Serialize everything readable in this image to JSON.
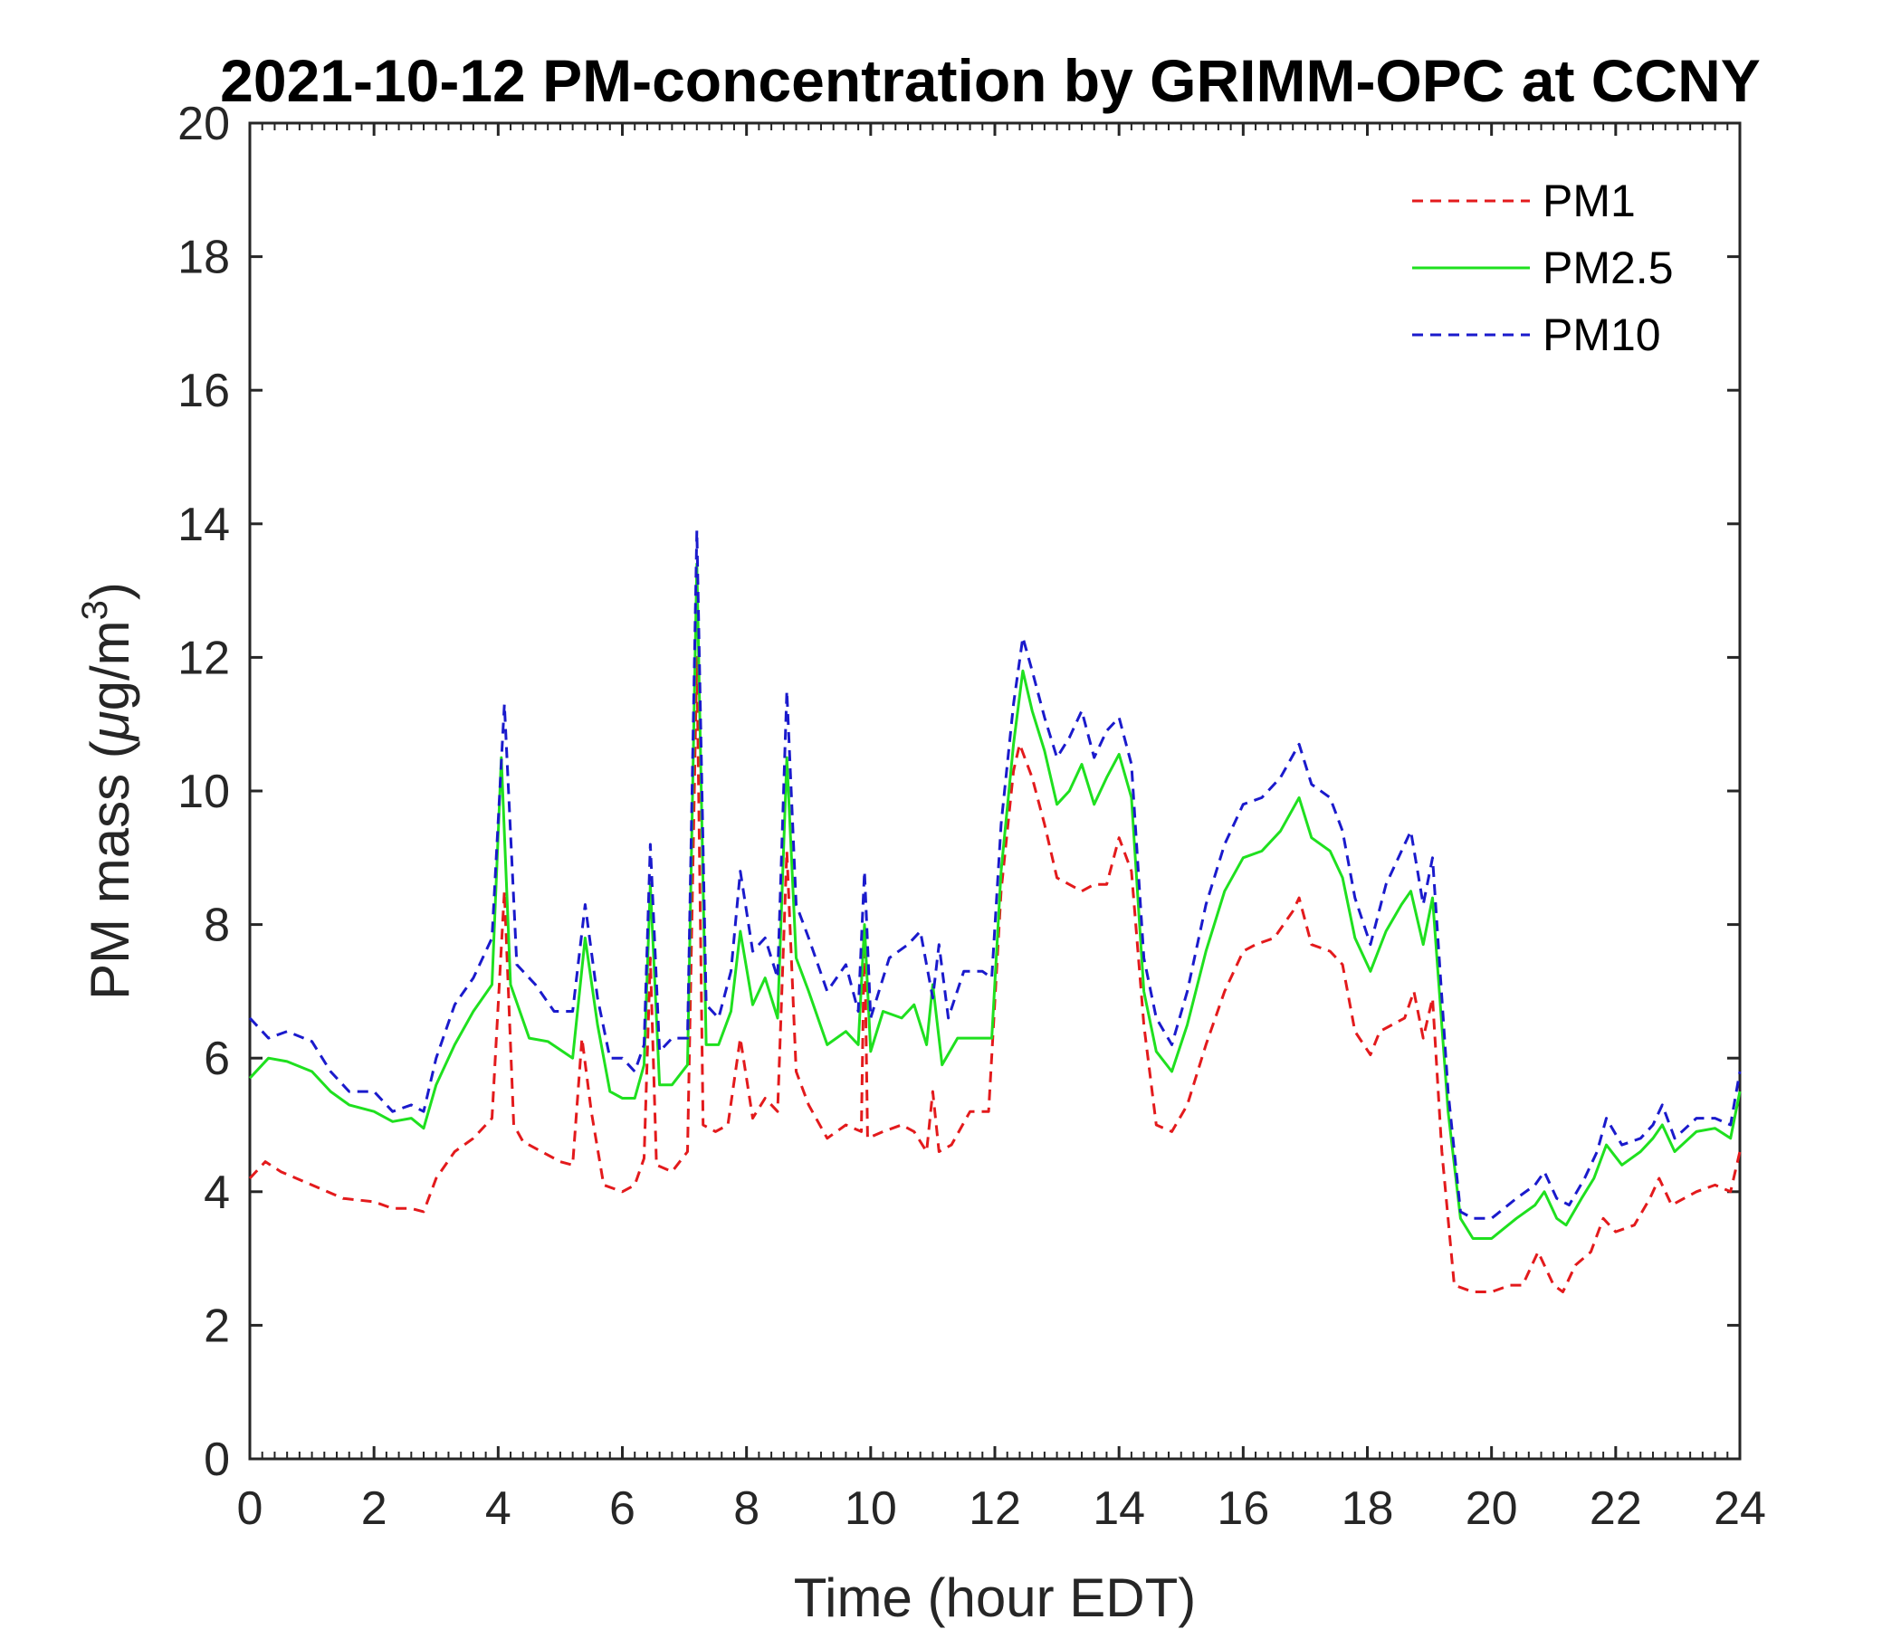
{
  "chart_data": {
    "type": "line",
    "title": "2021-10-12 PM-concentration by GRIMM-OPC at CCNY",
    "xlabel": "Time (hour EDT)",
    "ylabel_main": "PM mass (",
    "ylabel_mu": "μ",
    "ylabel_unit": "g/m",
    "ylabel_sup": "3",
    "ylabel_close": ")",
    "xlim": [
      0,
      24
    ],
    "ylim": [
      0,
      20
    ],
    "xticks": [
      "0",
      "2",
      "4",
      "6",
      "8",
      "10",
      "12",
      "14",
      "16",
      "18",
      "20",
      "22",
      "24"
    ],
    "yticks": [
      "0",
      "2",
      "4",
      "6",
      "8",
      "10",
      "12",
      "14",
      "16",
      "18",
      "20"
    ],
    "legend_position": "top-right",
    "series": [
      {
        "name": "PM1",
        "color": "#e31a1c",
        "dash": "dashed",
        "points": [
          [
            0,
            4.2
          ],
          [
            0.25,
            4.45
          ],
          [
            0.5,
            4.3
          ],
          [
            1,
            4.1
          ],
          [
            1.5,
            3.9
          ],
          [
            2,
            3.85
          ],
          [
            2.3,
            3.75
          ],
          [
            2.6,
            3.75
          ],
          [
            2.8,
            3.7
          ],
          [
            3,
            4.2
          ],
          [
            3.3,
            4.6
          ],
          [
            3.6,
            4.8
          ],
          [
            3.9,
            5.1
          ],
          [
            4.1,
            8.5
          ],
          [
            4.25,
            5
          ],
          [
            4.4,
            4.75
          ],
          [
            4.7,
            4.6
          ],
          [
            5,
            4.45
          ],
          [
            5.2,
            4.4
          ],
          [
            5.35,
            6.3
          ],
          [
            5.5,
            5.2
          ],
          [
            5.7,
            4.1
          ],
          [
            6,
            4
          ],
          [
            6.2,
            4.1
          ],
          [
            6.35,
            4.5
          ],
          [
            6.45,
            7.5
          ],
          [
            6.55,
            4.4
          ],
          [
            6.8,
            4.3
          ],
          [
            7.05,
            4.6
          ],
          [
            7.2,
            12.0
          ],
          [
            7.3,
            5.0
          ],
          [
            7.5,
            4.9
          ],
          [
            7.7,
            5.0
          ],
          [
            7.9,
            6.3
          ],
          [
            8.1,
            5.1
          ],
          [
            8.3,
            5.4
          ],
          [
            8.5,
            5.2
          ],
          [
            8.65,
            9.1
          ],
          [
            8.8,
            5.8
          ],
          [
            9,
            5.3
          ],
          [
            9.3,
            4.8
          ],
          [
            9.6,
            5
          ],
          [
            9.85,
            4.9
          ],
          [
            9.9,
            8.0
          ],
          [
            9.95,
            4.8
          ],
          [
            10.2,
            4.9
          ],
          [
            10.5,
            5
          ],
          [
            10.7,
            4.9
          ],
          [
            10.9,
            4.6
          ],
          [
            11,
            5.5
          ],
          [
            11.1,
            4.6
          ],
          [
            11.3,
            4.7
          ],
          [
            11.6,
            5.2
          ],
          [
            11.9,
            5.2
          ],
          [
            12.1,
            8.5
          ],
          [
            12.3,
            10.3
          ],
          [
            12.4,
            10.7
          ],
          [
            12.6,
            10.2
          ],
          [
            12.8,
            9.5
          ],
          [
            13,
            8.7
          ],
          [
            13.2,
            8.6
          ],
          [
            13.4,
            8.5
          ],
          [
            13.6,
            8.6
          ],
          [
            13.8,
            8.6
          ],
          [
            14,
            9.3
          ],
          [
            14.2,
            8.8
          ],
          [
            14.4,
            6.5
          ],
          [
            14.6,
            5.0
          ],
          [
            14.85,
            4.9
          ],
          [
            15.1,
            5.3
          ],
          [
            15.4,
            6.2
          ],
          [
            15.7,
            7.0
          ],
          [
            16,
            7.6
          ],
          [
            16.2,
            7.7
          ],
          [
            16.5,
            7.8
          ],
          [
            16.8,
            8.2
          ],
          [
            16.9,
            8.4
          ],
          [
            17.1,
            7.7
          ],
          [
            17.4,
            7.6
          ],
          [
            17.6,
            7.4
          ],
          [
            17.8,
            6.4
          ],
          [
            18.05,
            6.05
          ],
          [
            18.2,
            6.4
          ],
          [
            18.6,
            6.6
          ],
          [
            18.75,
            7.0
          ],
          [
            18.9,
            6.3
          ],
          [
            19.05,
            6.9
          ],
          [
            19.2,
            4.6
          ],
          [
            19.4,
            2.6
          ],
          [
            19.7,
            2.5
          ],
          [
            20,
            2.5
          ],
          [
            20.3,
            2.6
          ],
          [
            20.5,
            2.6
          ],
          [
            20.75,
            3.1
          ],
          [
            21,
            2.6
          ],
          [
            21.15,
            2.5
          ],
          [
            21.35,
            2.9
          ],
          [
            21.6,
            3.1
          ],
          [
            21.8,
            3.6
          ],
          [
            22,
            3.4
          ],
          [
            22.3,
            3.5
          ],
          [
            22.55,
            3.9
          ],
          [
            22.7,
            4.2
          ],
          [
            22.9,
            3.8
          ],
          [
            23.3,
            4.0
          ],
          [
            23.6,
            4.1
          ],
          [
            23.85,
            4.0
          ],
          [
            24,
            4.6
          ]
        ]
      },
      {
        "name": "PM2.5",
        "color": "#1fe01f",
        "dash": "solid",
        "points": [
          [
            0,
            5.7
          ],
          [
            0.3,
            6.0
          ],
          [
            0.6,
            5.95
          ],
          [
            1,
            5.8
          ],
          [
            1.3,
            5.5
          ],
          [
            1.6,
            5.3
          ],
          [
            2,
            5.2
          ],
          [
            2.3,
            5.05
          ],
          [
            2.6,
            5.1
          ],
          [
            2.8,
            4.95
          ],
          [
            3,
            5.6
          ],
          [
            3.3,
            6.2
          ],
          [
            3.6,
            6.7
          ],
          [
            3.9,
            7.1
          ],
          [
            4.05,
            10.5
          ],
          [
            4.2,
            7.1
          ],
          [
            4.5,
            6.3
          ],
          [
            4.8,
            6.25
          ],
          [
            5.2,
            6.0
          ],
          [
            5.4,
            7.8
          ],
          [
            5.6,
            6.5
          ],
          [
            5.8,
            5.5
          ],
          [
            6,
            5.4
          ],
          [
            6.2,
            5.4
          ],
          [
            6.35,
            5.9
          ],
          [
            6.45,
            8.6
          ],
          [
            6.6,
            5.6
          ],
          [
            6.8,
            5.6
          ],
          [
            7.05,
            5.9
          ],
          [
            7.2,
            13.4
          ],
          [
            7.35,
            6.2
          ],
          [
            7.55,
            6.2
          ],
          [
            7.75,
            6.7
          ],
          [
            7.9,
            7.9
          ],
          [
            8.1,
            6.8
          ],
          [
            8.3,
            7.2
          ],
          [
            8.5,
            6.6
          ],
          [
            8.65,
            10.5
          ],
          [
            8.8,
            7.5
          ],
          [
            9,
            7.0
          ],
          [
            9.3,
            6.2
          ],
          [
            9.6,
            6.4
          ],
          [
            9.8,
            6.2
          ],
          [
            9.9,
            8.0
          ],
          [
            10,
            6.1
          ],
          [
            10.2,
            6.7
          ],
          [
            10.5,
            6.6
          ],
          [
            10.7,
            6.8
          ],
          [
            10.9,
            6.2
          ],
          [
            11,
            7.1
          ],
          [
            11.15,
            5.9
          ],
          [
            11.4,
            6.3
          ],
          [
            11.7,
            6.3
          ],
          [
            11.95,
            6.3
          ],
          [
            12.1,
            8.8
          ],
          [
            12.3,
            10.7
          ],
          [
            12.45,
            11.8
          ],
          [
            12.6,
            11.2
          ],
          [
            12.8,
            10.6
          ],
          [
            13,
            9.8
          ],
          [
            13.2,
            10.0
          ],
          [
            13.4,
            10.4
          ],
          [
            13.6,
            9.8
          ],
          [
            13.8,
            10.2
          ],
          [
            14,
            10.55
          ],
          [
            14.2,
            9.9
          ],
          [
            14.4,
            7.0
          ],
          [
            14.6,
            6.1
          ],
          [
            14.85,
            5.8
          ],
          [
            15.1,
            6.5
          ],
          [
            15.4,
            7.6
          ],
          [
            15.7,
            8.5
          ],
          [
            16,
            9.0
          ],
          [
            16.3,
            9.1
          ],
          [
            16.6,
            9.4
          ],
          [
            16.9,
            9.9
          ],
          [
            17.1,
            9.3
          ],
          [
            17.4,
            9.1
          ],
          [
            17.6,
            8.7
          ],
          [
            17.8,
            7.8
          ],
          [
            18.05,
            7.3
          ],
          [
            18.3,
            7.9
          ],
          [
            18.55,
            8.3
          ],
          [
            18.7,
            8.5
          ],
          [
            18.9,
            7.7
          ],
          [
            19.05,
            8.4
          ],
          [
            19.3,
            5.2
          ],
          [
            19.5,
            3.6
          ],
          [
            19.7,
            3.3
          ],
          [
            20,
            3.3
          ],
          [
            20.4,
            3.6
          ],
          [
            20.7,
            3.8
          ],
          [
            20.85,
            4.0
          ],
          [
            21.05,
            3.6
          ],
          [
            21.2,
            3.5
          ],
          [
            21.45,
            3.9
          ],
          [
            21.65,
            4.2
          ],
          [
            21.85,
            4.7
          ],
          [
            22.1,
            4.4
          ],
          [
            22.4,
            4.6
          ],
          [
            22.6,
            4.8
          ],
          [
            22.75,
            5.0
          ],
          [
            22.95,
            4.6
          ],
          [
            23.3,
            4.9
          ],
          [
            23.6,
            4.95
          ],
          [
            23.85,
            4.8
          ],
          [
            24,
            5.5
          ]
        ]
      },
      {
        "name": "PM10",
        "color": "#1a1acc",
        "dash": "dashed",
        "points": [
          [
            0,
            6.6
          ],
          [
            0.3,
            6.3
          ],
          [
            0.6,
            6.4
          ],
          [
            1,
            6.25
          ],
          [
            1.3,
            5.8
          ],
          [
            1.6,
            5.5
          ],
          [
            2,
            5.5
          ],
          [
            2.3,
            5.2
          ],
          [
            2.6,
            5.3
          ],
          [
            2.8,
            5.2
          ],
          [
            3,
            6.0
          ],
          [
            3.3,
            6.8
          ],
          [
            3.6,
            7.2
          ],
          [
            3.9,
            7.8
          ],
          [
            4.1,
            11.3
          ],
          [
            4.3,
            7.4
          ],
          [
            4.6,
            7.1
          ],
          [
            4.9,
            6.7
          ],
          [
            5.2,
            6.7
          ],
          [
            5.4,
            8.3
          ],
          [
            5.6,
            6.9
          ],
          [
            5.8,
            6.0
          ],
          [
            6,
            6.0
          ],
          [
            6.2,
            5.8
          ],
          [
            6.35,
            6.2
          ],
          [
            6.45,
            9.2
          ],
          [
            6.6,
            6.1
          ],
          [
            6.8,
            6.3
          ],
          [
            7.05,
            6.3
          ],
          [
            7.2,
            13.9
          ],
          [
            7.35,
            6.8
          ],
          [
            7.55,
            6.6
          ],
          [
            7.75,
            7.3
          ],
          [
            7.9,
            8.8
          ],
          [
            8.1,
            7.6
          ],
          [
            8.3,
            7.8
          ],
          [
            8.5,
            7.2
          ],
          [
            8.65,
            11.5
          ],
          [
            8.8,
            8.3
          ],
          [
            9,
            7.8
          ],
          [
            9.3,
            7.0
          ],
          [
            9.6,
            7.4
          ],
          [
            9.8,
            6.7
          ],
          [
            9.9,
            8.8
          ],
          [
            10,
            6.6
          ],
          [
            10.3,
            7.5
          ],
          [
            10.6,
            7.7
          ],
          [
            10.8,
            7.9
          ],
          [
            11,
            6.9
          ],
          [
            11.1,
            7.7
          ],
          [
            11.25,
            6.6
          ],
          [
            11.5,
            7.3
          ],
          [
            11.8,
            7.3
          ],
          [
            11.95,
            7.2
          ],
          [
            12.1,
            9.5
          ],
          [
            12.3,
            11.3
          ],
          [
            12.45,
            12.3
          ],
          [
            12.6,
            11.8
          ],
          [
            12.8,
            11.1
          ],
          [
            13,
            10.5
          ],
          [
            13.2,
            10.8
          ],
          [
            13.4,
            11.2
          ],
          [
            13.6,
            10.5
          ],
          [
            13.8,
            10.9
          ],
          [
            14,
            11.1
          ],
          [
            14.2,
            10.4
          ],
          [
            14.4,
            7.5
          ],
          [
            14.6,
            6.6
          ],
          [
            14.85,
            6.2
          ],
          [
            15.1,
            7.0
          ],
          [
            15.4,
            8.3
          ],
          [
            15.7,
            9.2
          ],
          [
            16,
            9.8
          ],
          [
            16.3,
            9.9
          ],
          [
            16.6,
            10.2
          ],
          [
            16.9,
            10.7
          ],
          [
            17.1,
            10.1
          ],
          [
            17.4,
            9.9
          ],
          [
            17.6,
            9.4
          ],
          [
            17.8,
            8.4
          ],
          [
            18.05,
            7.7
          ],
          [
            18.3,
            8.6
          ],
          [
            18.55,
            9.1
          ],
          [
            18.7,
            9.4
          ],
          [
            18.9,
            8.3
          ],
          [
            19.05,
            9.0
          ],
          [
            19.3,
            5.5
          ],
          [
            19.5,
            3.7
          ],
          [
            19.7,
            3.6
          ],
          [
            20,
            3.6
          ],
          [
            20.4,
            3.9
          ],
          [
            20.7,
            4.1
          ],
          [
            20.85,
            4.3
          ],
          [
            21.05,
            3.9
          ],
          [
            21.25,
            3.8
          ],
          [
            21.5,
            4.2
          ],
          [
            21.7,
            4.6
          ],
          [
            21.85,
            5.1
          ],
          [
            22.1,
            4.7
          ],
          [
            22.4,
            4.8
          ],
          [
            22.6,
            5.0
          ],
          [
            22.75,
            5.3
          ],
          [
            22.95,
            4.8
          ],
          [
            23.3,
            5.1
          ],
          [
            23.6,
            5.1
          ],
          [
            23.85,
            5.0
          ],
          [
            24,
            5.8
          ]
        ]
      }
    ]
  }
}
